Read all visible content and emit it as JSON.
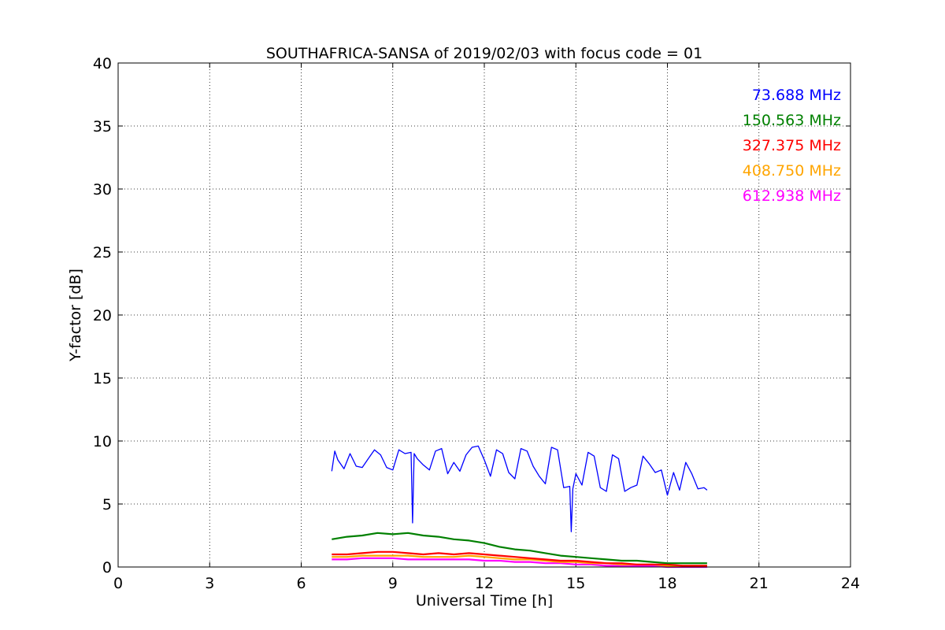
{
  "chart_data": {
    "type": "line",
    "title": "SOUTHAFRICA-SANSA of 2019/02/03 with focus code = 01",
    "xlabel": "Universal Time [h]",
    "ylabel": "Y-factor [dB]",
    "xlim": [
      0,
      24
    ],
    "ylim": [
      0,
      40
    ],
    "xticks": [
      0,
      3,
      6,
      9,
      12,
      15,
      18,
      21,
      24
    ],
    "yticks": [
      0,
      5,
      10,
      15,
      20,
      25,
      30,
      35,
      40
    ],
    "grid": true,
    "legend_position": "top-right",
    "series": [
      {
        "name": "73.688 MHz",
        "color": "#0000ff",
        "x": [
          7.0,
          7.1,
          7.2,
          7.4,
          7.6,
          7.8,
          8.0,
          8.2,
          8.4,
          8.6,
          8.8,
          9.0,
          9.2,
          9.4,
          9.6,
          9.65,
          9.7,
          9.8,
          10.0,
          10.2,
          10.4,
          10.6,
          10.8,
          11.0,
          11.2,
          11.4,
          11.6,
          11.8,
          12.0,
          12.2,
          12.4,
          12.6,
          12.8,
          13.0,
          13.2,
          13.4,
          13.6,
          13.8,
          14.0,
          14.2,
          14.4,
          14.6,
          14.8,
          14.85,
          14.9,
          15.0,
          15.2,
          15.4,
          15.6,
          15.8,
          16.0,
          16.2,
          16.4,
          16.6,
          16.8,
          17.0,
          17.2,
          17.4,
          17.6,
          17.8,
          18.0,
          18.2,
          18.4,
          18.6,
          18.8,
          19.0,
          19.2,
          19.3
        ],
        "y": [
          7.6,
          9.2,
          8.5,
          7.8,
          9.0,
          8.0,
          7.9,
          8.6,
          9.3,
          8.9,
          7.9,
          7.7,
          9.3,
          9.0,
          9.1,
          3.5,
          9.0,
          8.6,
          8.1,
          7.7,
          9.2,
          9.4,
          7.4,
          8.3,
          7.6,
          8.9,
          9.5,
          9.6,
          8.5,
          7.2,
          9.3,
          9.0,
          7.5,
          7.0,
          9.4,
          9.2,
          8.0,
          7.2,
          6.6,
          9.5,
          9.3,
          6.3,
          6.4,
          2.8,
          6.2,
          7.4,
          6.5,
          9.1,
          8.8,
          6.3,
          6.0,
          8.9,
          8.6,
          6.0,
          6.3,
          6.5,
          8.8,
          8.2,
          7.5,
          7.7,
          5.7,
          7.5,
          6.1,
          8.3,
          7.4,
          6.2,
          6.3,
          6.1
        ]
      },
      {
        "name": "150.563 MHz",
        "color": "#008000",
        "x": [
          7.0,
          7.5,
          8.0,
          8.5,
          9.0,
          9.5,
          10.0,
          10.5,
          11.0,
          11.5,
          12.0,
          12.5,
          13.0,
          13.5,
          14.0,
          14.5,
          15.0,
          15.5,
          16.0,
          16.5,
          17.0,
          17.5,
          18.0,
          18.5,
          19.0,
          19.3
        ],
        "y": [
          2.2,
          2.4,
          2.5,
          2.7,
          2.6,
          2.7,
          2.5,
          2.4,
          2.2,
          2.1,
          1.9,
          1.6,
          1.4,
          1.3,
          1.1,
          0.9,
          0.8,
          0.7,
          0.6,
          0.5,
          0.5,
          0.4,
          0.3,
          0.3,
          0.3,
          0.3
        ]
      },
      {
        "name": "327.375 MHz",
        "color": "#ff0000",
        "x": [
          7.0,
          7.5,
          8.0,
          8.5,
          9.0,
          9.5,
          10.0,
          10.5,
          11.0,
          11.5,
          12.0,
          12.5,
          13.0,
          13.5,
          14.0,
          14.5,
          15.0,
          15.5,
          16.0,
          16.5,
          17.0,
          17.5,
          18.0,
          18.5,
          19.0,
          19.3
        ],
        "y": [
          1.0,
          1.0,
          1.1,
          1.2,
          1.2,
          1.1,
          1.0,
          1.1,
          1.0,
          1.1,
          1.0,
          0.9,
          0.8,
          0.7,
          0.6,
          0.5,
          0.5,
          0.4,
          0.3,
          0.3,
          0.2,
          0.2,
          0.2,
          0.1,
          0.1,
          0.1
        ]
      },
      {
        "name": "408.750 MHz",
        "color": "#ffa500",
        "x": [
          7.0,
          7.5,
          8.0,
          8.5,
          9.0,
          9.5,
          10.0,
          10.5,
          11.0,
          11.5,
          12.0,
          12.5,
          13.0,
          13.5,
          14.0,
          14.5,
          15.0,
          15.5,
          16.0,
          16.5,
          17.0,
          17.5,
          18.0,
          18.5,
          19.0,
          19.3
        ],
        "y": [
          0.8,
          0.8,
          0.9,
          0.9,
          0.9,
          0.9,
          0.8,
          0.8,
          0.8,
          0.9,
          0.8,
          0.7,
          0.6,
          0.6,
          0.5,
          0.4,
          0.4,
          0.3,
          0.3,
          0.2,
          0.2,
          0.2,
          0.1,
          0.1,
          0.1,
          0.1
        ]
      },
      {
        "name": "612.938 MHz",
        "color": "#ff00ff",
        "x": [
          7.0,
          7.5,
          8.0,
          8.5,
          9.0,
          9.5,
          10.0,
          10.5,
          11.0,
          11.5,
          12.0,
          12.5,
          13.0,
          13.5,
          14.0,
          14.5,
          15.0,
          15.5,
          16.0,
          16.5,
          17.0,
          17.5,
          18.0,
          18.5,
          19.0,
          19.3
        ],
        "y": [
          0.6,
          0.6,
          0.7,
          0.7,
          0.7,
          0.6,
          0.6,
          0.6,
          0.6,
          0.6,
          0.5,
          0.5,
          0.4,
          0.4,
          0.3,
          0.3,
          0.2,
          0.2,
          0.1,
          0.1,
          0.1,
          0.1,
          0.0,
          0.0,
          0.0,
          0.0
        ]
      }
    ]
  }
}
